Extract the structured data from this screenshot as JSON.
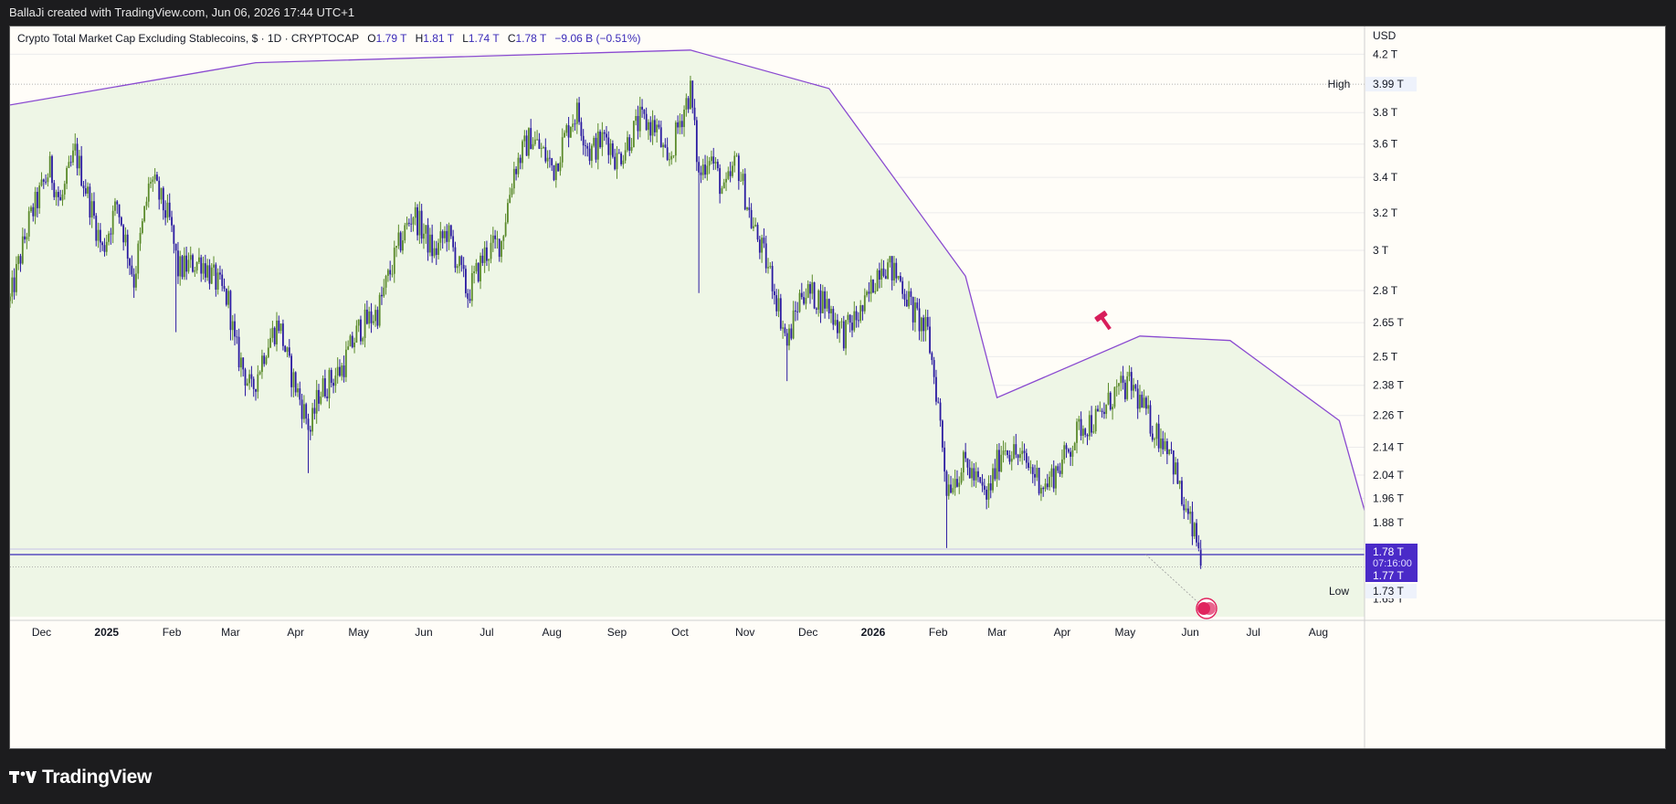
{
  "header": {
    "attribution": "BallaJi created with TradingView.com, Jun 06, 2026 17:44 UTC+1"
  },
  "legend": {
    "title": "Crypto Total Market Cap Excluding Stablecoins, $ · 1D · CRYPTOCAP",
    "open_key": "O",
    "open": "1.79 T",
    "high_key": "H",
    "high": "1.81 T",
    "low_key": "L",
    "low": "1.74 T",
    "close_key": "C",
    "close": "1.78 T",
    "change": "−9.06 B (−0.51%)"
  },
  "footer": {
    "brand": "TradingView"
  },
  "colors": {
    "up": "#5a8a2a",
    "down": "#2a1aa0",
    "overlay": "#8a4ad0",
    "fill": "#eef6e6",
    "price_line": "#3a2ab8",
    "label_bg": "#4a2ac8",
    "accent_red": "#d81e5b"
  },
  "chart_data": {
    "type": "candlestick",
    "currency": "USD",
    "scale": "log",
    "interval": "1D",
    "ylim": [
      1.6,
      4.35
    ],
    "y_ticks": [
      "4.2 T",
      "3.8 T",
      "3.6 T",
      "3.4 T",
      "3.2 T",
      "3 T",
      "2.8 T",
      "2.65 T",
      "2.5 T",
      "2.38 T",
      "2.26 T",
      "2.14 T",
      "2.04 T",
      "1.96 T",
      "1.88 T",
      "1.8 T",
      "1.65 T"
    ],
    "x_ticks": [
      {
        "label": "Dec",
        "date": "2024-12-01",
        "bold": false
      },
      {
        "label": "2025",
        "date": "2025-01-01",
        "bold": true
      },
      {
        "label": "Feb",
        "date": "2025-02-01",
        "bold": false
      },
      {
        "label": "Mar",
        "date": "2025-03-01",
        "bold": false
      },
      {
        "label": "Apr",
        "date": "2025-04-01",
        "bold": false
      },
      {
        "label": "May",
        "date": "2025-05-01",
        "bold": false
      },
      {
        "label": "Jun",
        "date": "2025-06-01",
        "bold": false
      },
      {
        "label": "Jul",
        "date": "2025-07-01",
        "bold": false
      },
      {
        "label": "Aug",
        "date": "2025-08-01",
        "bold": false
      },
      {
        "label": "Sep",
        "date": "2025-09-01",
        "bold": false
      },
      {
        "label": "Oct",
        "date": "2025-10-01",
        "bold": false
      },
      {
        "label": "Nov",
        "date": "2025-11-01",
        "bold": false
      },
      {
        "label": "Dec",
        "date": "2025-12-01",
        "bold": false
      },
      {
        "label": "2026",
        "date": "2026-01-01",
        "bold": true
      },
      {
        "label": "Feb",
        "date": "2026-02-01",
        "bold": false
      },
      {
        "label": "Mar",
        "date": "2026-03-01",
        "bold": false
      },
      {
        "label": "Apr",
        "date": "2026-04-01",
        "bold": false
      },
      {
        "label": "May",
        "date": "2026-05-01",
        "bold": false
      },
      {
        "label": "Jun",
        "date": "2026-06-01",
        "bold": false
      },
      {
        "label": "Jul",
        "date": "2026-07-01",
        "bold": false
      },
      {
        "label": "Aug",
        "date": "2026-08-01",
        "bold": false
      }
    ],
    "x_range": [
      "2024-11-16",
      "2026-08-23"
    ],
    "price_anchors": [
      [
        "2024-11-16",
        2.75
      ],
      [
        "2024-11-25",
        3.15
      ],
      [
        "2024-12-05",
        3.45
      ],
      [
        "2024-12-10",
        3.25
      ],
      [
        "2024-12-17",
        3.55
      ],
      [
        "2024-12-30",
        3.0
      ],
      [
        "2025-01-06",
        3.25
      ],
      [
        "2025-01-14",
        2.85
      ],
      [
        "2025-01-22",
        3.4
      ],
      [
        "2025-01-31",
        3.15
      ],
      [
        "2025-02-04",
        2.9
      ],
      [
        "2025-02-15",
        2.95
      ],
      [
        "2025-02-28",
        2.75
      ],
      [
        "2025-03-03",
        2.55
      ],
      [
        "2025-03-11",
        2.35
      ],
      [
        "2025-03-18",
        2.55
      ],
      [
        "2025-03-24",
        2.65
      ],
      [
        "2025-03-29",
        2.45
      ],
      [
        "2025-04-08",
        2.2
      ],
      [
        "2025-04-12",
        2.35
      ],
      [
        "2025-04-23",
        2.45
      ],
      [
        "2025-05-01",
        2.62
      ],
      [
        "2025-05-10",
        2.7
      ],
      [
        "2025-05-21",
        3.05
      ],
      [
        "2025-05-27",
        3.2
      ],
      [
        "2025-06-06",
        2.98
      ],
      [
        "2025-06-12",
        3.1
      ],
      [
        "2025-06-22",
        2.78
      ],
      [
        "2025-06-30",
        2.98
      ],
      [
        "2025-07-08",
        3.05
      ],
      [
        "2025-07-14",
        3.45
      ],
      [
        "2025-07-22",
        3.65
      ],
      [
        "2025-08-02",
        3.45
      ],
      [
        "2025-08-10",
        3.75
      ],
      [
        "2025-08-13",
        3.8
      ],
      [
        "2025-08-19",
        3.55
      ],
      [
        "2025-08-27",
        3.65
      ],
      [
        "2025-09-01",
        3.5
      ],
      [
        "2025-09-12",
        3.75
      ],
      [
        "2025-09-20",
        3.7
      ],
      [
        "2025-09-25",
        3.45
      ],
      [
        "2025-10-01",
        3.75
      ],
      [
        "2025-10-06",
        3.95
      ],
      [
        "2025-10-10",
        3.4
      ],
      [
        "2025-10-15",
        3.55
      ],
      [
        "2025-10-22",
        3.3
      ],
      [
        "2025-10-28",
        3.5
      ],
      [
        "2025-11-04",
        3.15
      ],
      [
        "2025-11-14",
        2.85
      ],
      [
        "2025-11-21",
        2.55
      ],
      [
        "2025-11-28",
        2.8
      ],
      [
        "2025-12-09",
        2.75
      ],
      [
        "2025-12-18",
        2.6
      ],
      [
        "2025-12-28",
        2.72
      ],
      [
        "2026-01-05",
        2.95
      ],
      [
        "2026-01-14",
        2.85
      ],
      [
        "2026-01-20",
        2.7
      ],
      [
        "2026-01-27",
        2.6
      ],
      [
        "2026-02-01",
        2.3
      ],
      [
        "2026-02-05",
        2.0
      ],
      [
        "2026-02-14",
        2.08
      ],
      [
        "2026-02-24",
        1.96
      ],
      [
        "2026-03-04",
        2.15
      ],
      [
        "2026-03-15",
        2.08
      ],
      [
        "2026-03-24",
        2.0
      ],
      [
        "2026-04-02",
        2.1
      ],
      [
        "2026-04-10",
        2.22
      ],
      [
        "2026-04-19",
        2.25
      ],
      [
        "2026-04-26",
        2.35
      ],
      [
        "2026-05-04",
        2.38
      ],
      [
        "2026-05-10",
        2.28
      ],
      [
        "2026-05-15",
        2.2
      ],
      [
        "2026-05-22",
        2.15
      ],
      [
        "2026-05-28",
        1.95
      ],
      [
        "2026-06-06",
        1.78
      ]
    ],
    "overlay_polyline": [
      [
        "2024-11-16",
        3.85
      ],
      [
        "2025-03-13",
        4.14
      ],
      [
        "2025-10-06",
        4.23
      ],
      [
        "2025-12-11",
        3.96
      ],
      [
        "2026-02-14",
        2.87
      ],
      [
        "2026-03-01",
        2.33
      ],
      [
        "2026-05-08",
        2.59
      ],
      [
        "2026-06-20",
        2.57
      ],
      [
        "2026-08-11",
        2.24
      ],
      [
        "2026-08-23",
        1.92
      ]
    ],
    "high_marker": {
      "label": "High",
      "value_label": "3.99 T",
      "value": 3.99
    },
    "low_marker": {
      "label": "Low",
      "value_label": "1.73 T",
      "value": 1.73
    },
    "last_price": {
      "value_label": "1.78 T",
      "countdown": "07:16:00",
      "value": 1.78
    },
    "second_price": {
      "value_label": "1.77 T",
      "value": 1.77
    }
  }
}
